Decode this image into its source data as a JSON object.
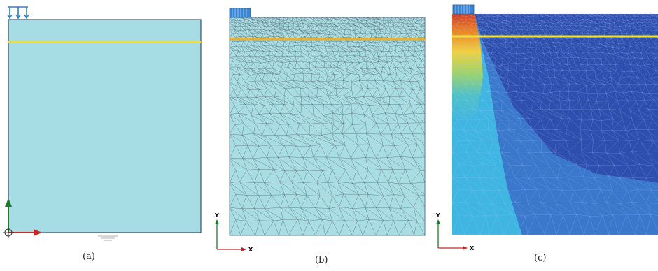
{
  "panels": [
    {
      "caption": "(a)"
    },
    {
      "caption": "(b)",
      "axis_x": "X",
      "axis_y": "Y"
    },
    {
      "caption": "(c)",
      "axis_x": "X",
      "axis_y": "Y"
    }
  ],
  "colors": {
    "soil": "#a6dce3",
    "soil_border": "#3a4f6a",
    "layer_line": "#f2dc3c",
    "load": "#2f7fd0",
    "axis_y": "#1b7a2a",
    "axis_x": "#c62828",
    "mesh": "#6c7a80",
    "contour_low": "#2040a0",
    "contour_mid": "#3fb6e2",
    "contour_high": "#d83a1a"
  }
}
